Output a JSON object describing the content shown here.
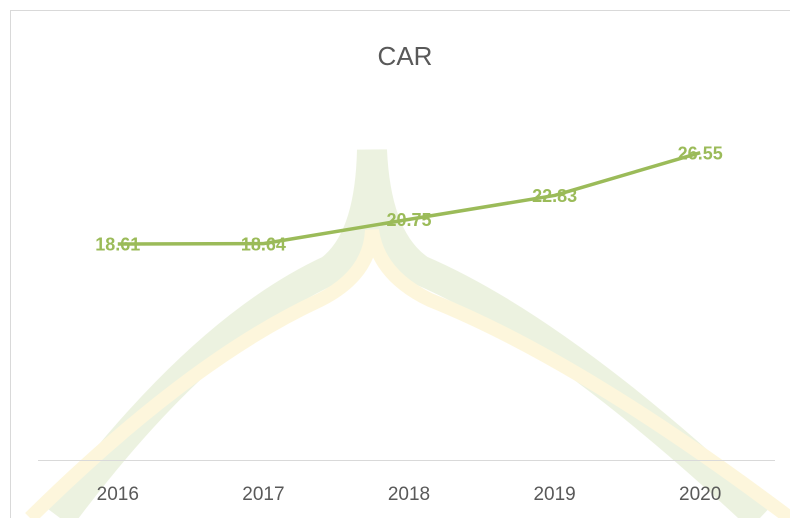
{
  "chart_data": {
    "type": "line",
    "title": "CAR",
    "categories": [
      "2016",
      "2017",
      "2018",
      "2019",
      "2020"
    ],
    "values": [
      18.61,
      18.64,
      20.75,
      22.83,
      26.55
    ],
    "color": "#9bbb59",
    "ylim": [
      0,
      30
    ]
  }
}
